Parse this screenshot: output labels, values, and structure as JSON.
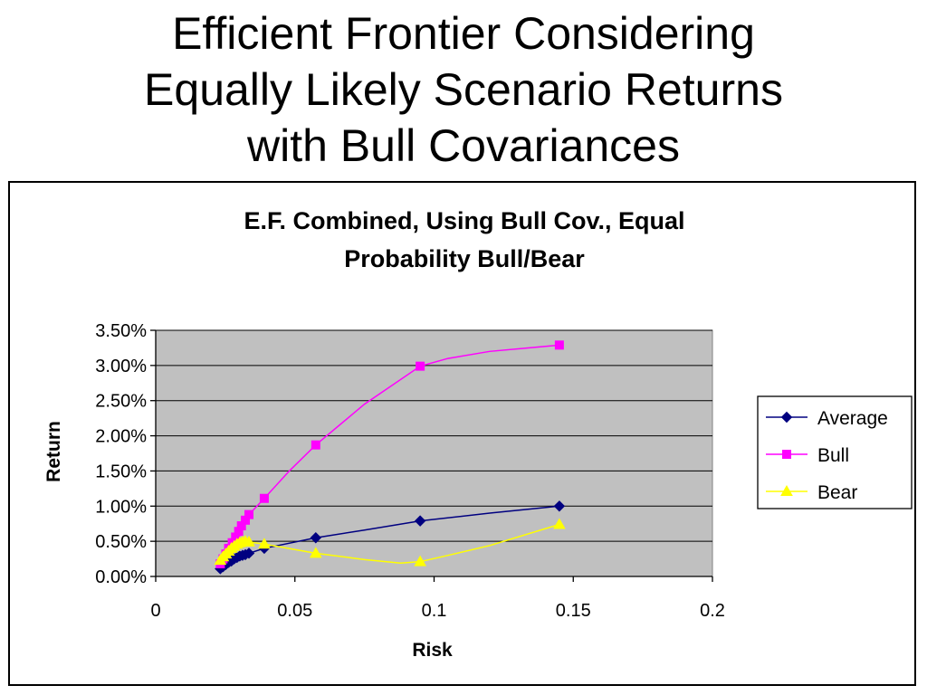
{
  "slide": {
    "title_lines": [
      "Efficient Frontier Considering",
      "Equally Likely Scenario Returns",
      "with Bull Covariances"
    ]
  },
  "chart_data": {
    "type": "line",
    "title_lines": [
      "E.F. Combined, Using Bull Cov., Equal",
      "Probability Bull/Bear"
    ],
    "xlabel": "Risk",
    "ylabel": "Return",
    "xlim": [
      0,
      0.2
    ],
    "ylim": [
      0,
      0.035
    ],
    "x_ticks": [
      0,
      0.05,
      0.1,
      0.15,
      0.2
    ],
    "x_tick_labels": [
      "0",
      "0.05",
      "0.1",
      "0.15",
      "0.2"
    ],
    "y_ticks": [
      0,
      0.005,
      0.01,
      0.015,
      0.02,
      0.025,
      0.03,
      0.035
    ],
    "y_tick_labels": [
      "0.00%",
      "0.50%",
      "1.00%",
      "1.50%",
      "2.00%",
      "2.50%",
      "3.00%",
      "3.50%"
    ],
    "grid": "horizontal",
    "plot_background": "#c0c0c0",
    "legend_position": "right",
    "series": [
      {
        "name": "Average",
        "color": "#000080",
        "marker": "diamond",
        "x": [
          0.0232,
          0.0242,
          0.0252,
          0.0262,
          0.0272,
          0.0282,
          0.0292,
          0.0302,
          0.0312,
          0.0322,
          0.0335,
          0.039,
          0.0575,
          0.075,
          0.095,
          0.12,
          0.145
        ],
        "y": [
          0.0011,
          0.0014,
          0.0017,
          0.002,
          0.0022,
          0.0025,
          0.0027,
          0.0029,
          0.003,
          0.0031,
          0.0033,
          0.004,
          0.0055,
          0.0066,
          0.0079,
          0.009,
          0.01
        ],
        "marked": [
          true,
          true,
          true,
          true,
          true,
          true,
          true,
          true,
          true,
          true,
          true,
          true,
          true,
          false,
          true,
          false,
          true
        ]
      },
      {
        "name": "Bull",
        "color": "#ff00ff",
        "marker": "square",
        "x": [
          0.0232,
          0.0242,
          0.0252,
          0.0262,
          0.0275,
          0.0287,
          0.0298,
          0.0308,
          0.0322,
          0.0335,
          0.039,
          0.048,
          0.0575,
          0.075,
          0.095,
          0.105,
          0.12,
          0.145
        ],
        "y": [
          0.0018,
          0.0025,
          0.0032,
          0.004,
          0.0048,
          0.0056,
          0.0064,
          0.0072,
          0.008,
          0.0088,
          0.0111,
          0.015,
          0.0187,
          0.0245,
          0.0299,
          0.031,
          0.032,
          0.0329
        ],
        "marked": [
          true,
          true,
          true,
          true,
          true,
          true,
          true,
          true,
          true,
          true,
          true,
          false,
          true,
          false,
          true,
          false,
          false,
          true
        ]
      },
      {
        "name": "Bear",
        "color": "#ffff00",
        "marker": "triangle",
        "x": [
          0.0232,
          0.0242,
          0.0252,
          0.0262,
          0.0272,
          0.0282,
          0.0292,
          0.0302,
          0.0312,
          0.0322,
          0.0335,
          0.039,
          0.0575,
          0.075,
          0.088,
          0.095,
          0.105,
          0.12,
          0.145
        ],
        "y": [
          0.0023,
          0.0028,
          0.0032,
          0.0036,
          0.004,
          0.0043,
          0.0046,
          0.0048,
          0.0049,
          0.005,
          0.0049,
          0.0046,
          0.0033,
          0.0024,
          0.0019,
          0.0021,
          0.003,
          0.0044,
          0.0074
        ],
        "marked": [
          true,
          true,
          true,
          true,
          true,
          true,
          true,
          true,
          true,
          true,
          true,
          true,
          true,
          false,
          false,
          true,
          false,
          false,
          true
        ]
      }
    ]
  }
}
